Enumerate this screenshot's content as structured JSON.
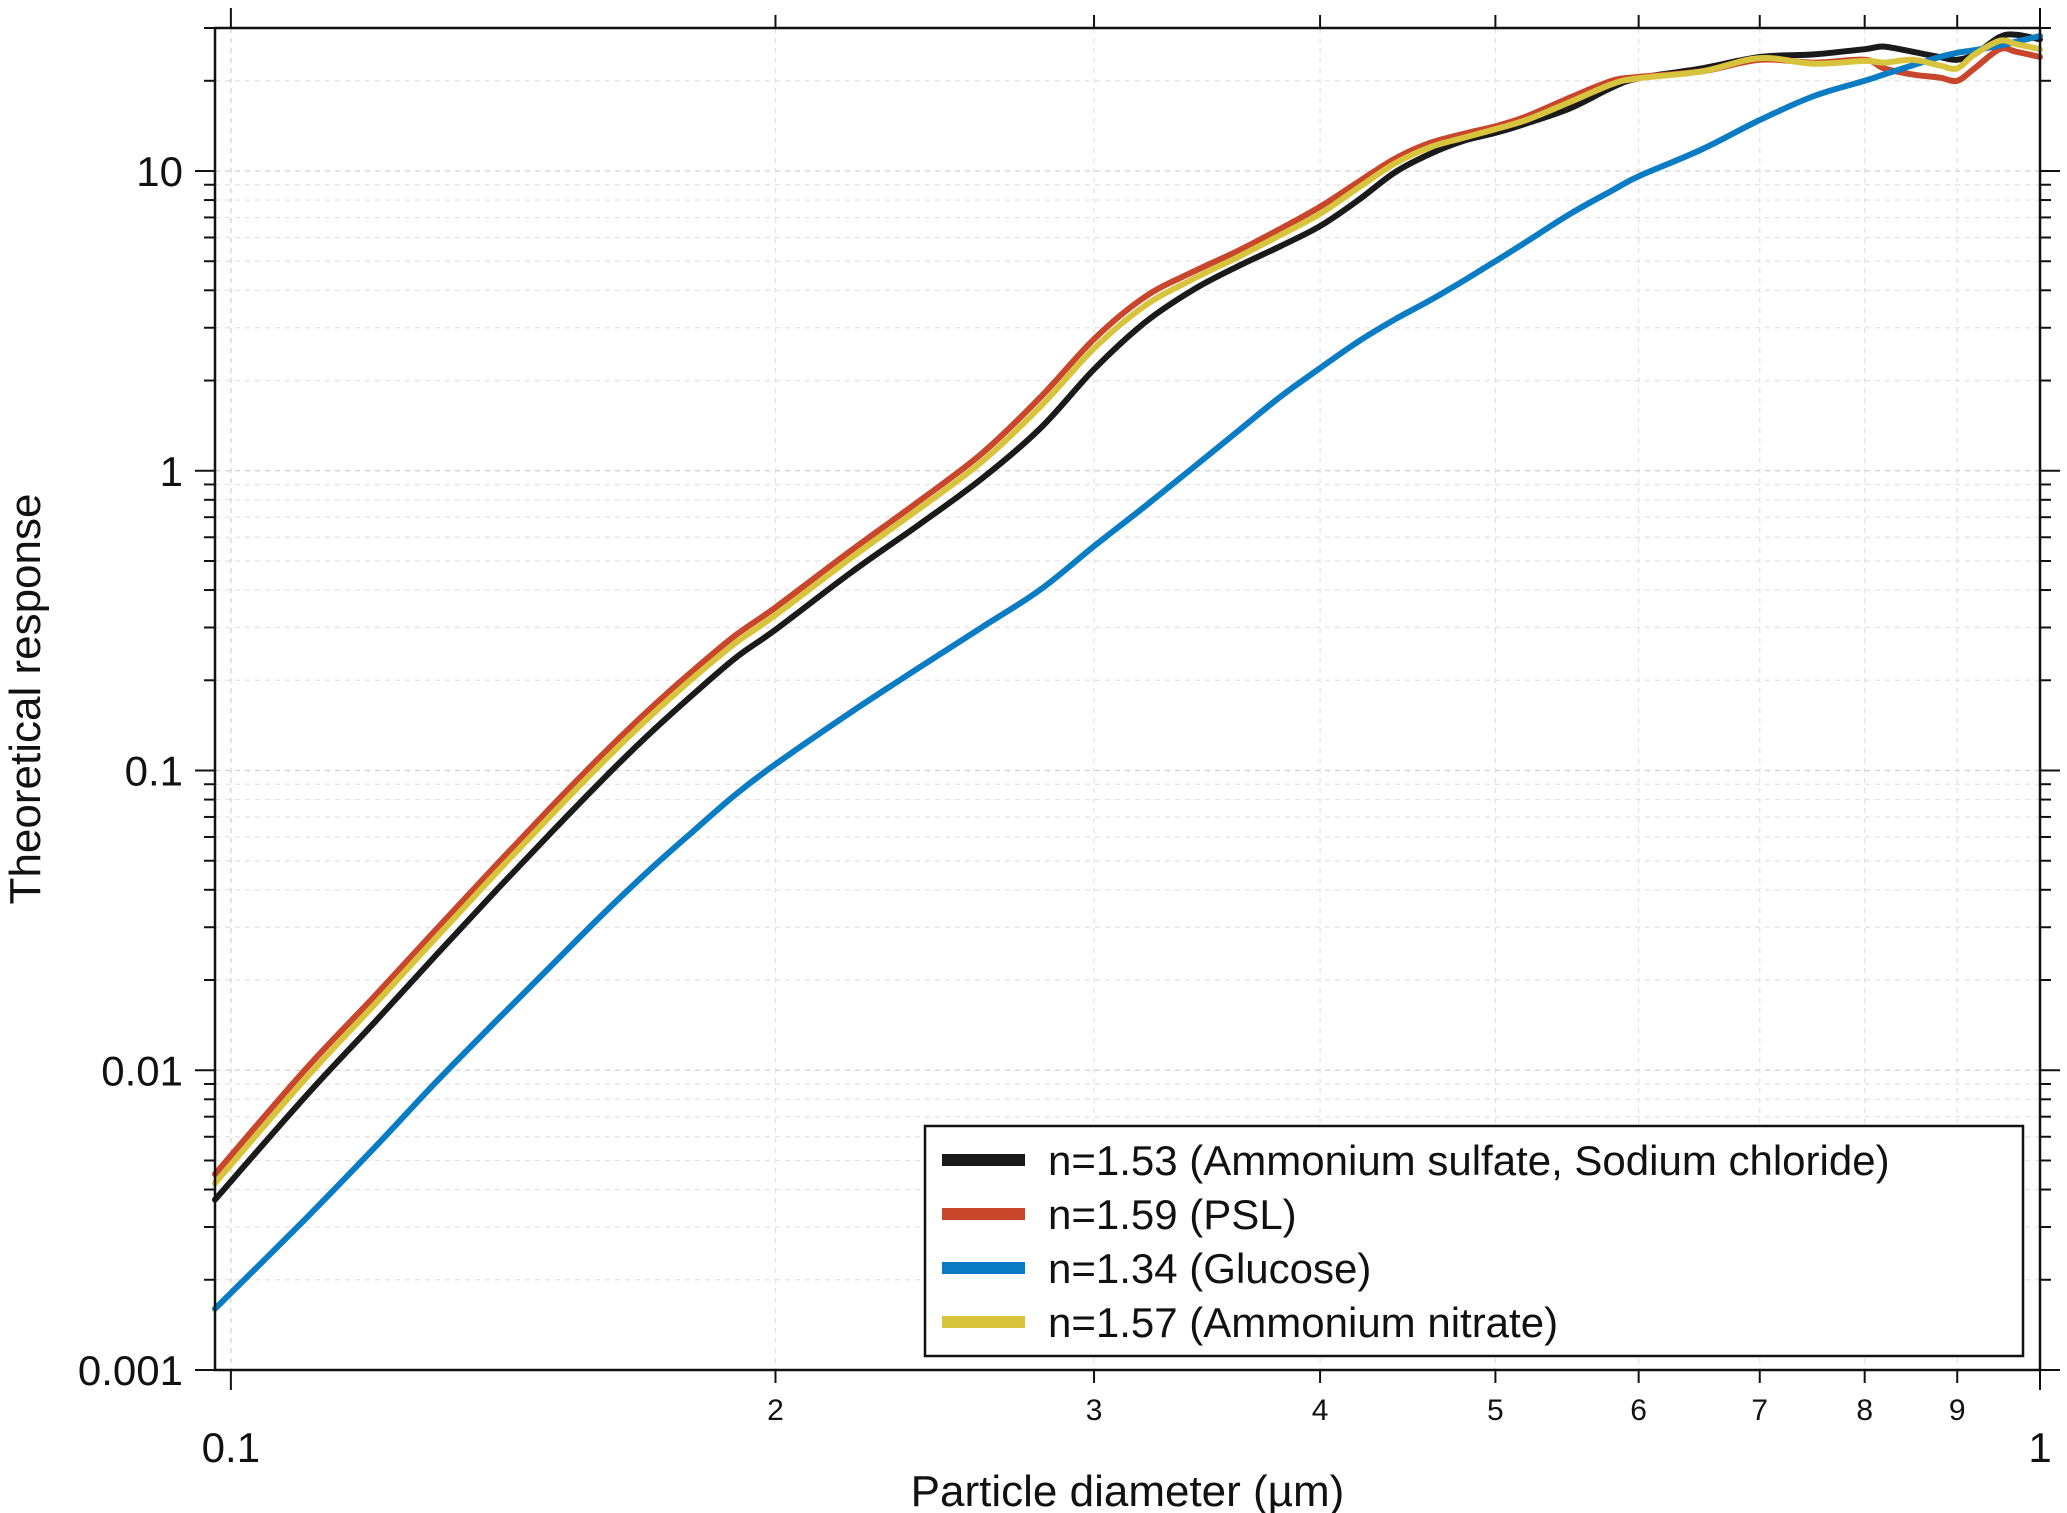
{
  "chart_data": {
    "type": "line",
    "title": "",
    "xlabel": "Particle diameter (µm)",
    "ylabel": "Theoretical response",
    "xscale": "log",
    "yscale": "log",
    "xlim": [
      0.098,
      1.0
    ],
    "ylim": [
      0.001,
      30
    ],
    "grid": true,
    "legend_position": "bottom-right",
    "x_major_ticks": [
      {
        "value": 0.1,
        "label": "0.1"
      },
      {
        "value": 1.0,
        "label": "1"
      }
    ],
    "x_minor_ticks": [
      {
        "value": 0.2,
        "label": "2"
      },
      {
        "value": 0.3,
        "label": "3"
      },
      {
        "value": 0.4,
        "label": "4"
      },
      {
        "value": 0.5,
        "label": "5"
      },
      {
        "value": 0.6,
        "label": "6"
      },
      {
        "value": 0.7,
        "label": "7"
      },
      {
        "value": 0.8,
        "label": "8"
      },
      {
        "value": 0.9,
        "label": "9"
      }
    ],
    "y_major_ticks": [
      {
        "value": 0.001,
        "label": "0.001"
      },
      {
        "value": 0.01,
        "label": "0.01"
      },
      {
        "value": 0.1,
        "label": "0.1"
      },
      {
        "value": 1,
        "label": "1"
      },
      {
        "value": 10,
        "label": "10"
      }
    ],
    "x": [
      0.098,
      0.11,
      0.12,
      0.13,
      0.14,
      0.15,
      0.16,
      0.17,
      0.18,
      0.19,
      0.2,
      0.22,
      0.24,
      0.26,
      0.28,
      0.3,
      0.32,
      0.34,
      0.36,
      0.38,
      0.4,
      0.42,
      0.44,
      0.46,
      0.48,
      0.5,
      0.52,
      0.55,
      0.58,
      0.6,
      0.65,
      0.7,
      0.75,
      0.8,
      0.82,
      0.85,
      0.88,
      0.9,
      0.92,
      0.95,
      0.97,
      1.0
    ],
    "series": [
      {
        "name": "n=1.53 (Ammonium sulfate, Sodium chloride)",
        "color": "#1a1a1a",
        "values": [
          0.0037,
          0.0082,
          0.0144,
          0.0244,
          0.0395,
          0.0612,
          0.0915,
          0.131,
          0.179,
          0.237,
          0.295,
          0.456,
          0.66,
          0.94,
          1.38,
          2.18,
          3.12,
          4.0,
          4.8,
          5.6,
          6.55,
          8.0,
          9.9,
          11.4,
          12.6,
          13.4,
          14.4,
          16.2,
          19.0,
          20.4,
          22.0,
          24.0,
          24.5,
          25.5,
          26.0,
          25.0,
          24.0,
          23.5,
          24.5,
          28.0,
          28.5,
          27.5
        ]
      },
      {
        "name": "n=1.59 (PSL)",
        "color": "#c8462c",
        "values": [
          0.0045,
          0.0101,
          0.0176,
          0.0297,
          0.048,
          0.0745,
          0.111,
          0.158,
          0.215,
          0.282,
          0.35,
          0.54,
          0.79,
          1.14,
          1.75,
          2.75,
          3.8,
          4.6,
          5.4,
          6.4,
          7.6,
          9.2,
          11.0,
          12.4,
          13.3,
          14.1,
          15.2,
          17.6,
          20.0,
          20.6,
          21.5,
          23.5,
          23.0,
          23.5,
          22.0,
          21.0,
          20.5,
          20.0,
          22.0,
          25.5,
          25.0,
          24.0
        ]
      },
      {
        "name": "n=1.34 (Glucose)",
        "color": "#0a7cc4",
        "values": [
          0.0016,
          0.0032,
          0.0055,
          0.0092,
          0.0145,
          0.022,
          0.0325,
          0.046,
          0.0625,
          0.083,
          0.105,
          0.156,
          0.22,
          0.3,
          0.4,
          0.56,
          0.76,
          1.02,
          1.35,
          1.76,
          2.2,
          2.7,
          3.2,
          3.7,
          4.3,
          5.0,
          5.8,
          7.2,
          8.6,
          9.6,
          11.8,
          14.8,
          17.8,
          20.0,
          21.0,
          22.5,
          24.0,
          24.8,
          25.3,
          26.2,
          27.0,
          28.2
        ]
      },
      {
        "name": "n=1.57 (Ammonium nitrate)",
        "color": "#d8c43c",
        "values": [
          0.0042,
          0.0094,
          0.0165,
          0.0279,
          0.0452,
          0.07,
          0.1045,
          0.149,
          0.203,
          0.266,
          0.33,
          0.51,
          0.745,
          1.07,
          1.63,
          2.56,
          3.55,
          4.35,
          5.15,
          6.1,
          7.2,
          8.8,
          10.6,
          12.0,
          12.9,
          13.8,
          14.8,
          17.0,
          19.5,
          20.4,
          21.5,
          23.8,
          22.8,
          23.3,
          23.0,
          23.5,
          22.5,
          22.0,
          24.5,
          27.2,
          26.5,
          25.5
        ]
      }
    ]
  }
}
